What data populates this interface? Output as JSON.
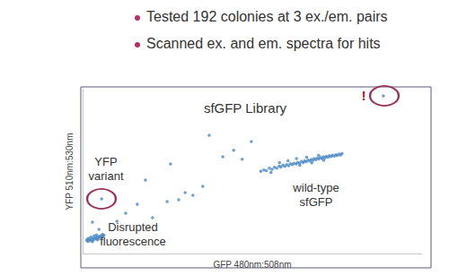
{
  "slide": {
    "bullets": [
      "Tested 192 colonies at 3 ex./em. pairs",
      "Scanned ex. and em. spectra for hits"
    ]
  },
  "chart_data": {
    "type": "scatter",
    "title": "sfGFP Library",
    "x_label": "GFP 480nm:508nm",
    "y_label": "YFP 510nm:530nm",
    "x": [
      88.6,
      5.6,
      37.3,
      49.7,
      41.3,
      25.9,
      18.5,
      35.4,
      32.5,
      30.2,
      28.3,
      24.9,
      16.1,
      20.6,
      10.1,
      12.7,
      2.9,
      4.8,
      44.5,
      47.0,
      1.2,
      1.6,
      2.0,
      2.3,
      2.7,
      3.0,
      3.3,
      3.6,
      3.9,
      4.2,
      4.5,
      4.8,
      5.1,
      5.4,
      5.7,
      6.0,
      1.8,
      2.5,
      3.4,
      4.1,
      1.4,
      2.9,
      4.4,
      5.9,
      6.3,
      52.5,
      53.4,
      54.1,
      55.0,
      55.8,
      56.5,
      57.2,
      57.9,
      58.4,
      59.0,
      59.6,
      60.1,
      60.7,
      61.2,
      61.8,
      62.3,
      62.9,
      63.4,
      63.9,
      64.5,
      65.0,
      65.4,
      65.9,
      66.4,
      66.9,
      67.3,
      67.8,
      68.2,
      68.7,
      69.1,
      69.6,
      70.0,
      70.5,
      70.9,
      71.4,
      71.8,
      72.3,
      72.7,
      73.2,
      73.6,
      74.1,
      74.6,
      75.0,
      75.5,
      76.0,
      76.4,
      60.5,
      63.0,
      66.0,
      69.5,
      58.0,
      64.0,
      67.5,
      71.0,
      55.5
    ],
    "y": [
      96.2,
      33.3,
      72.1,
      68.3,
      59.0,
      54.6,
      44.8,
      41.0,
      35.5,
      37.2,
      32.8,
      31.7,
      30.1,
      21.9,
      19.7,
      24.6,
      19.1,
      14.8,
      63.0,
      57.5,
      8.0,
      7.4,
      8.6,
      7.8,
      9.0,
      8.2,
      9.4,
      8.7,
      9.8,
      9.1,
      10.2,
      9.5,
      10.6,
      10.0,
      11.0,
      10.4,
      9.3,
      10.1,
      10.8,
      11.3,
      8.8,
      7.3,
      8.4,
      11.6,
      11.2,
      50.2,
      51.0,
      50.6,
      52.0,
      51.4,
      52.6,
      52.1,
      53.3,
      52.8,
      53.9,
      53.1,
      54.2,
      53.6,
      54.8,
      54.3,
      55.1,
      54.6,
      55.6,
      55.0,
      56.1,
      55.5,
      56.6,
      56.0,
      57.0,
      56.4,
      57.4,
      56.9,
      57.9,
      57.3,
      58.2,
      57.7,
      58.6,
      58.0,
      59.0,
      58.4,
      59.3,
      58.8,
      59.7,
      59.1,
      60.0,
      59.4,
      60.3,
      59.8,
      60.6,
      60.1,
      61.0,
      56.6,
      57.9,
      58.7,
      60.0,
      55.5,
      53.8,
      55.3,
      56.9,
      49.4
    ],
    "color": "#4a8ac4",
    "marker": "circle",
    "xlim": [
      0,
      100
    ],
    "ylim": [
      0,
      100
    ],
    "xticks": [],
    "yticks": [],
    "grid": false,
    "tick_labels": false,
    "annotations": [
      {
        "text": "YFP\nvariant"
      },
      {
        "text": "wild-type\nsfGFP"
      },
      {
        "text": "Disrupted\nfluorescence"
      },
      {
        "text": "!"
      }
    ]
  }
}
